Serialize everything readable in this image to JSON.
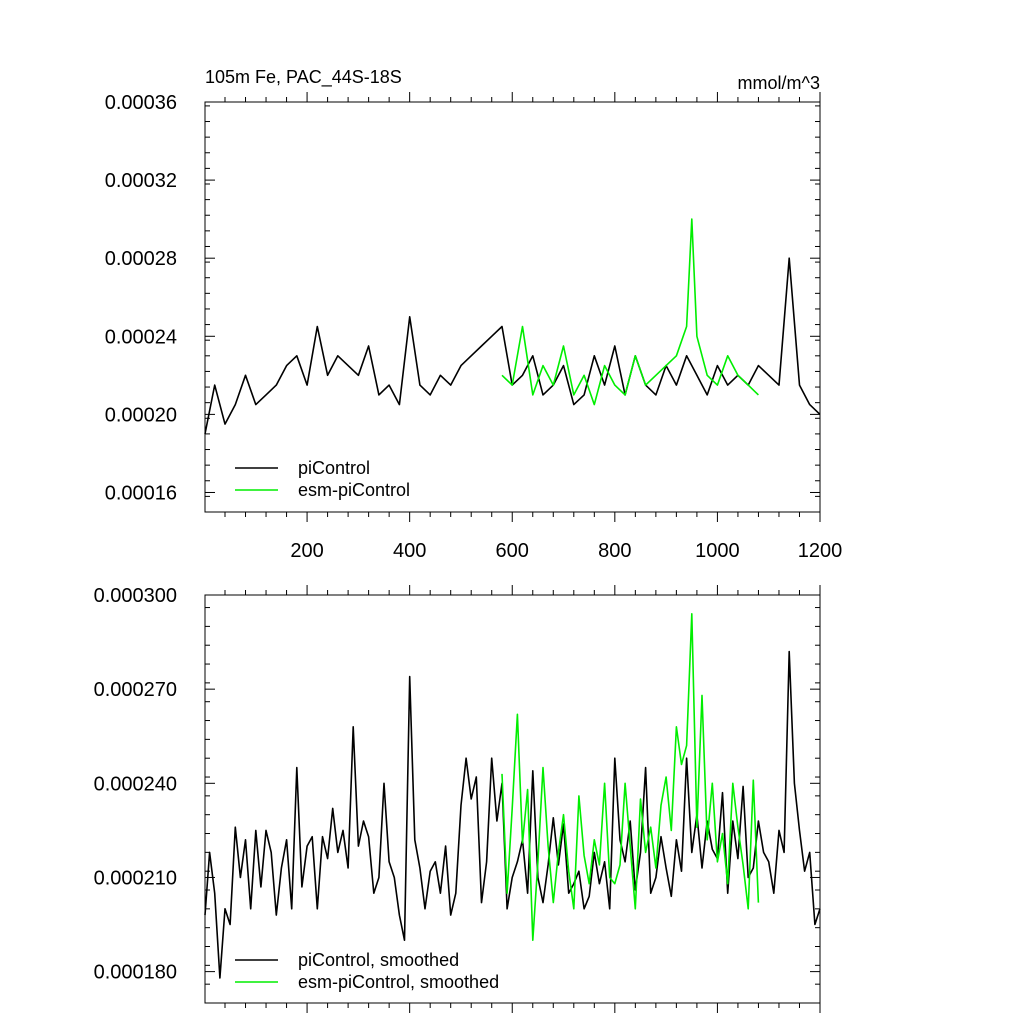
{
  "chart_data": [
    {
      "type": "line",
      "title": "105m Fe, PAC_44S-18S",
      "units": "mmol/m^3",
      "xlim": [
        1,
        1200
      ],
      "ylim": [
        0.00015,
        0.00036
      ],
      "xticks": [
        200,
        400,
        600,
        800,
        1000,
        1200
      ],
      "yticks": [
        0.00016,
        0.0002,
        0.00024,
        0.00028,
        0.00032,
        0.00036
      ],
      "ytick_labels": [
        "0.00016",
        "0.00020",
        "0.00024",
        "0.00028",
        "0.00032",
        "0.00036"
      ],
      "xtick_labels": [
        "200",
        "400",
        "600",
        "800",
        "1000",
        "1200"
      ],
      "legend_position": "bottom-left",
      "grid": false,
      "series": [
        {
          "name": "piControl",
          "color": "#000000",
          "x": [
            1,
            20,
            40,
            60,
            80,
            100,
            120,
            140,
            160,
            180,
            200,
            220,
            240,
            260,
            280,
            300,
            320,
            340,
            360,
            380,
            400,
            420,
            440,
            460,
            480,
            500,
            520,
            540,
            560,
            580,
            600,
            620,
            640,
            660,
            680,
            700,
            720,
            740,
            760,
            780,
            800,
            820,
            840,
            860,
            880,
            900,
            920,
            940,
            960,
            980,
            1000,
            1020,
            1040,
            1060,
            1080,
            1100,
            1120,
            1140,
            1160,
            1180,
            1200
          ],
          "y": [
            0.00019,
            0.000215,
            0.000195,
            0.000205,
            0.00022,
            0.000205,
            0.00021,
            0.000215,
            0.000225,
            0.00023,
            0.000215,
            0.000245,
            0.00022,
            0.00023,
            0.000225,
            0.00022,
            0.000235,
            0.00021,
            0.000215,
            0.000205,
            0.00025,
            0.000215,
            0.00021,
            0.00022,
            0.000215,
            0.000225,
            0.00023,
            0.000235,
            0.00024,
            0.000245,
            0.000215,
            0.00022,
            0.00023,
            0.00021,
            0.000215,
            0.000225,
            0.000205,
            0.00021,
            0.00023,
            0.000215,
            0.000235,
            0.00021,
            0.00023,
            0.000215,
            0.00021,
            0.000225,
            0.000215,
            0.00023,
            0.00022,
            0.00021,
            0.000225,
            0.000215,
            0.00022,
            0.000215,
            0.000225,
            0.00022,
            0.000215,
            0.00028,
            0.000215,
            0.000205,
            0.0002
          ]
        },
        {
          "name": "esm-piControl",
          "color": "#00ee00",
          "x": [
            580,
            600,
            620,
            640,
            660,
            680,
            700,
            720,
            740,
            760,
            780,
            800,
            820,
            840,
            860,
            880,
            900,
            920,
            940,
            950,
            960,
            980,
            1000,
            1020,
            1040,
            1060,
            1080
          ],
          "y": [
            0.00022,
            0.000215,
            0.000245,
            0.00021,
            0.000225,
            0.000215,
            0.000235,
            0.00021,
            0.00022,
            0.000205,
            0.000225,
            0.000215,
            0.00021,
            0.00023,
            0.000215,
            0.00022,
            0.000225,
            0.00023,
            0.000245,
            0.0003,
            0.00024,
            0.00022,
            0.000215,
            0.00023,
            0.00022,
            0.000215,
            0.00021
          ]
        }
      ]
    },
    {
      "type": "line",
      "xlim": [
        1,
        1200
      ],
      "ylim": [
        0.00017,
        0.0003
      ],
      "yticks": [
        0.00018,
        0.00021,
        0.00024,
        0.00027,
        0.0003
      ],
      "ytick_labels": [
        "0.000180",
        "0.000210",
        "0.000240",
        "0.000270",
        "0.000300"
      ],
      "legend_position": "bottom-left",
      "grid": false,
      "series": [
        {
          "name": "piControl, smoothed",
          "color": "#000000",
          "x": [
            1,
            10,
            20,
            30,
            40,
            50,
            60,
            70,
            80,
            90,
            100,
            110,
            120,
            130,
            140,
            150,
            160,
            170,
            180,
            190,
            200,
            210,
            220,
            230,
            240,
            250,
            260,
            270,
            280,
            290,
            300,
            310,
            320,
            330,
            340,
            350,
            360,
            370,
            380,
            390,
            400,
            410,
            420,
            430,
            440,
            450,
            460,
            470,
            480,
            490,
            500,
            510,
            520,
            530,
            540,
            550,
            560,
            570,
            580,
            590,
            600,
            610,
            620,
            630,
            640,
            650,
            660,
            670,
            680,
            690,
            700,
            710,
            720,
            730,
            740,
            750,
            760,
            770,
            780,
            790,
            800,
            810,
            820,
            830,
            840,
            850,
            860,
            870,
            880,
            890,
            900,
            910,
            920,
            930,
            940,
            950,
            960,
            970,
            980,
            990,
            1000,
            1010,
            1020,
            1030,
            1040,
            1050,
            1060,
            1070,
            1080,
            1090,
            1100,
            1110,
            1120,
            1130,
            1140,
            1150,
            1160,
            1170,
            1180,
            1190,
            1200
          ],
          "y": [
            0.000198,
            0.000218,
            0.000205,
            0.000178,
            0.0002,
            0.000195,
            0.000226,
            0.00021,
            0.000222,
            0.0002,
            0.000225,
            0.000207,
            0.000225,
            0.000218,
            0.000198,
            0.000213,
            0.000222,
            0.0002,
            0.000245,
            0.000207,
            0.00022,
            0.000223,
            0.0002,
            0.000223,
            0.000216,
            0.000232,
            0.000218,
            0.000225,
            0.000213,
            0.000258,
            0.00022,
            0.000228,
            0.000223,
            0.000205,
            0.00021,
            0.00024,
            0.000215,
            0.00021,
            0.000198,
            0.00019,
            0.000274,
            0.000222,
            0.000213,
            0.0002,
            0.000212,
            0.000215,
            0.000205,
            0.00022,
            0.000198,
            0.000205,
            0.000233,
            0.000248,
            0.000235,
            0.000242,
            0.000202,
            0.000215,
            0.000248,
            0.000228,
            0.00024,
            0.0002,
            0.00021,
            0.000215,
            0.000222,
            0.000205,
            0.000244,
            0.00021,
            0.000202,
            0.000214,
            0.000229,
            0.000214,
            0.000227,
            0.000205,
            0.000208,
            0.000212,
            0.0002,
            0.000204,
            0.000218,
            0.000208,
            0.000215,
            0.0002,
            0.000248,
            0.000222,
            0.000215,
            0.000228,
            0.000206,
            0.000218,
            0.000245,
            0.000205,
            0.00021,
            0.000223,
            0.000213,
            0.000204,
            0.000222,
            0.000212,
            0.000248,
            0.000218,
            0.00023,
            0.000213,
            0.000228,
            0.000219,
            0.000216,
            0.000237,
            0.000205,
            0.000228,
            0.000216,
            0.000239,
            0.00021,
            0.000213,
            0.000228,
            0.000218,
            0.000215,
            0.000205,
            0.000225,
            0.000218,
            0.000282,
            0.00024,
            0.000225,
            0.000212,
            0.000218,
            0.000195,
            0.0002
          ]
        },
        {
          "name": "esm-piControl, smoothed",
          "color": "#00ee00",
          "x": [
            580,
            590,
            600,
            610,
            620,
            630,
            640,
            650,
            660,
            670,
            680,
            690,
            700,
            710,
            720,
            730,
            740,
            750,
            760,
            770,
            780,
            790,
            800,
            810,
            820,
            830,
            840,
            850,
            860,
            870,
            880,
            890,
            900,
            910,
            920,
            930,
            940,
            950,
            960,
            970,
            980,
            990,
            1000,
            1010,
            1020,
            1030,
            1040,
            1050,
            1060,
            1070,
            1080
          ],
          "y": [
            0.000243,
            0.000205,
            0.000232,
            0.000262,
            0.000221,
            0.000238,
            0.00019,
            0.000215,
            0.000245,
            0.00022,
            0.000202,
            0.000218,
            0.00023,
            0.000212,
            0.0002,
            0.000236,
            0.000217,
            0.000208,
            0.000222,
            0.000214,
            0.00024,
            0.00021,
            0.000208,
            0.000214,
            0.00024,
            0.00022,
            0.0002,
            0.000235,
            0.000218,
            0.000226,
            0.000213,
            0.000233,
            0.000242,
            0.000225,
            0.000258,
            0.000246,
            0.000252,
            0.000294,
            0.000226,
            0.000268,
            0.000222,
            0.00024,
            0.000215,
            0.000224,
            0.000208,
            0.00024,
            0.000226,
            0.000214,
            0.0002,
            0.000241,
            0.000202
          ]
        }
      ]
    }
  ]
}
